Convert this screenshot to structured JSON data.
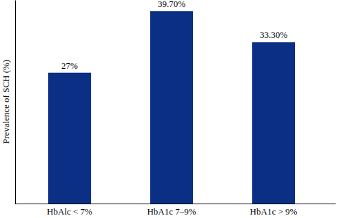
{
  "chart_data": {
    "type": "bar",
    "categories": [
      "HbAlc < 7%",
      "HbA1c 7–9%",
      "HbA1c > 9%"
    ],
    "values": [
      27,
      39.7,
      33.3
    ],
    "value_labels": [
      "27%",
      "39.70%",
      "33.30%"
    ],
    "data_labels": true,
    "color": "#0b2f84",
    "y_label": "Prevalence of SCH (%)",
    "ylim": [
      0,
      42
    ],
    "tick_labels": "x"
  }
}
